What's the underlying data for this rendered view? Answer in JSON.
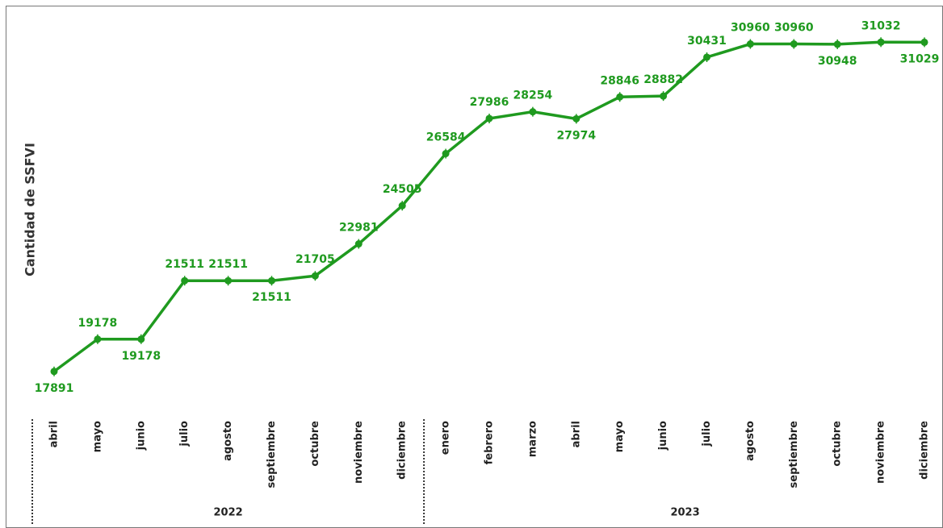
{
  "chart_data": {
    "type": "line",
    "y_label": "Cantidad de SSFVI",
    "groups": [
      {
        "label": "2022",
        "categories": [
          "abril",
          "mayo",
          "junio",
          "julio",
          "agosto",
          "septiembre",
          "octubre",
          "noviembre",
          "diciembre"
        ]
      },
      {
        "label": "2023",
        "categories": [
          "enero",
          "febrero",
          "marzo",
          "abril",
          "mayo",
          "junio",
          "julio",
          "agosto",
          "septiembre",
          "octubre",
          "noviembre",
          "diciembre"
        ]
      }
    ],
    "values": [
      17891,
      19178,
      19178,
      21511,
      21511,
      21511,
      21705,
      22981,
      24505,
      26584,
      27986,
      28254,
      27974,
      28846,
      28882,
      30431,
      30960,
      30960,
      30948,
      31032,
      31029
    ],
    "color": "#1f9a1f",
    "ylim": [
      16500,
      32200
    ],
    "grid": false
  }
}
